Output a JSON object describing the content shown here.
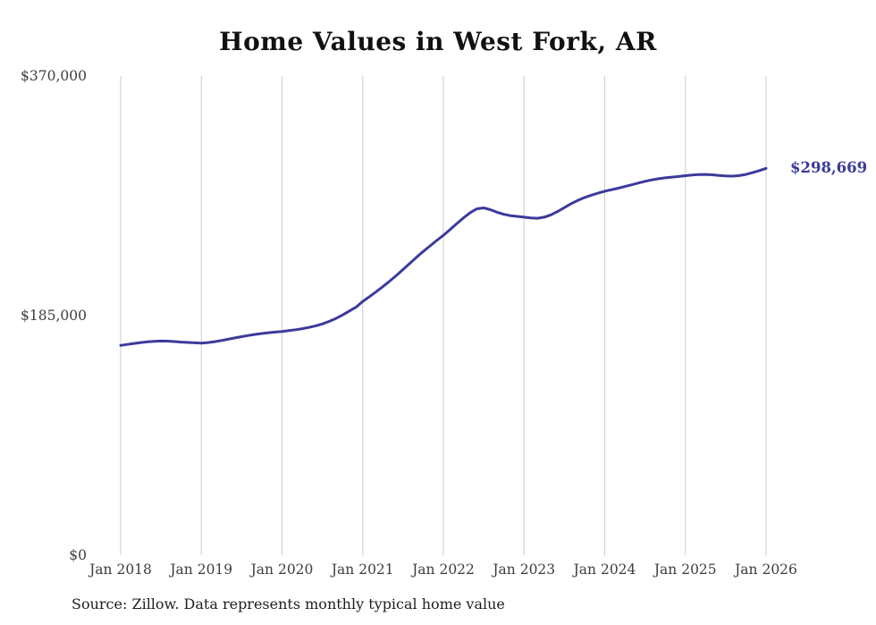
{
  "title": "Home Values in West Fork, AR",
  "end_label": "$298,669",
  "source_note": "Source: Zillow. Data represents monthly typical home value",
  "colors": {
    "line": "#3b3a9c",
    "end_label": "#3b3a9c",
    "gridline": "#cccccc",
    "tick_text": "#3d3d3d",
    "title_text": "#111111"
  },
  "chart_data": {
    "type": "line",
    "title": "Home Values in West Fork, AR",
    "xlabel": "",
    "ylabel": "",
    "ylim": [
      0,
      370000
    ],
    "grid": "vertical-only",
    "legend": "none",
    "x_start": "Jan 2018",
    "x_interval": "monthly",
    "x_tick_labels": [
      "Jan 2018",
      "Jan 2019",
      "Jan 2020",
      "Jan 2021",
      "Jan 2022",
      "Jan 2023",
      "Jan 2024",
      "Jan 2025",
      "Jan 2026"
    ],
    "y_ticks": [
      {
        "label": "$0",
        "value": 0
      },
      {
        "label": "$185,000",
        "value": 185000
      },
      {
        "label": "$370,000",
        "value": 370000
      }
    ],
    "series_name": "Typical home value",
    "final_value": 298669,
    "values": [
      162000,
      162800,
      163500,
      164200,
      164800,
      165200,
      165400,
      165300,
      165000,
      164600,
      164300,
      164000,
      163800,
      164200,
      164900,
      165800,
      166800,
      167800,
      168800,
      169700,
      170500,
      171200,
      171800,
      172300,
      172800,
      173400,
      174100,
      174900,
      175900,
      177100,
      178600,
      180500,
      182800,
      185500,
      188500,
      191500,
      196000,
      199600,
      203400,
      207400,
      211600,
      216000,
      220600,
      225300,
      230000,
      234500,
      238800,
      243000,
      247000,
      251500,
      256000,
      260500,
      264500,
      267500,
      268200,
      266800,
      264800,
      263200,
      262200,
      261600,
      261000,
      260400,
      260200,
      261000,
      262800,
      265400,
      268400,
      271400,
      274000,
      276200,
      278000,
      279600,
      281000,
      282200,
      283400,
      284700,
      286000,
      287400,
      288700,
      289800,
      290700,
      291400,
      291900,
      292400,
      293000,
      293500,
      293900,
      294000,
      293700,
      293200,
      292800,
      292700,
      293100,
      294000,
      295400,
      297000,
      298669
    ]
  }
}
